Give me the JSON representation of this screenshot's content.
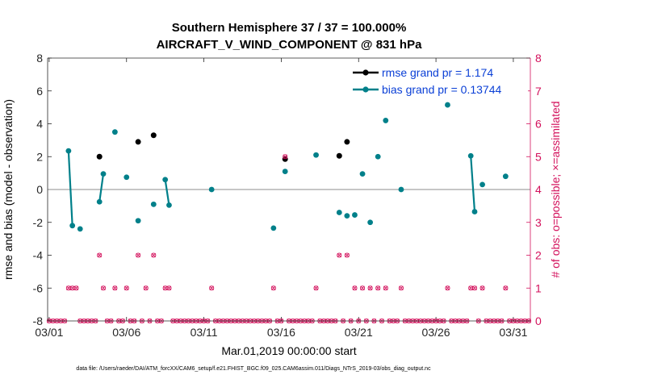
{
  "chart_data": {
    "type": "line",
    "title_line1": "Southern Hemisphere 37 / 37 = 100.000%",
    "title_line2": "AIRCRAFT_V_WIND_COMPONENT @ 831 hPa",
    "xlabel": "Mar.01,2019 00:00:00 start",
    "ylabel": "rmse and bias (model - observation)",
    "ylabel_right": "# of obs: o=possible; ×=assimilated",
    "footer": "data file: /Users/raeder/DAI/ATM_forcXX/CAM6_setup/f.e21.FHIST_BGC.f09_025.CAM6assim.011/Diags_NTrS_2019-03/obs_diag_output.nc",
    "xlim": [
      0.9,
      32.1
    ],
    "ylim": [
      -8,
      8
    ],
    "ylim_right": [
      0,
      8
    ],
    "x_ticks": [
      1,
      6,
      11,
      16,
      21,
      26,
      31
    ],
    "x_tick_labels": [
      "03/01",
      "03/06",
      "03/11",
      "03/16",
      "03/21",
      "03/26",
      "03/31"
    ],
    "y_ticks": [
      -8,
      -6,
      -4,
      -2,
      0,
      2,
      4,
      6,
      8
    ],
    "y_tick_labels": [
      "-8",
      "-6",
      "-4",
      "-2",
      "0",
      "2",
      "4",
      "6",
      "8"
    ],
    "y_ticks_right": [
      0,
      1,
      2,
      3,
      4,
      5,
      6,
      7,
      8
    ],
    "y_tick_labels_right": [
      "0",
      "1",
      "2",
      "3",
      "4",
      "5",
      "6",
      "7",
      "8"
    ],
    "zero_line": 0,
    "series": [
      {
        "name": "rmse grand pr = 1.174",
        "color": "#000000",
        "points": [
          {
            "x": 4.25,
            "y": 2.0
          },
          {
            "x": 6.75,
            "y": 2.9
          },
          {
            "x": 7.75,
            "y": 3.3
          },
          {
            "x": 16.25,
            "y": 1.85
          },
          {
            "x": 19.75,
            "y": 2.05
          },
          {
            "x": 20.25,
            "y": 2.9
          }
        ]
      },
      {
        "name": "bias grand pr = 0.13744",
        "color": "#00808a",
        "segments": [
          [
            {
              "x": 2.25,
              "y": 2.35
            },
            {
              "x": 2.5,
              "y": -2.2
            }
          ],
          [
            {
              "x": 3.0,
              "y": -2.4
            }
          ],
          [
            {
              "x": 4.25,
              "y": -0.75
            },
            {
              "x": 4.5,
              "y": 0.95
            }
          ],
          [
            {
              "x": 5.25,
              "y": 3.5
            }
          ],
          [
            {
              "x": 6.0,
              "y": 0.75
            }
          ],
          [
            {
              "x": 6.75,
              "y": -1.9
            }
          ],
          [
            {
              "x": 7.75,
              "y": -0.9
            }
          ],
          [
            {
              "x": 8.5,
              "y": 0.6
            },
            {
              "x": 8.75,
              "y": -0.95
            }
          ],
          [
            {
              "x": 11.5,
              "y": 0.0
            }
          ],
          [
            {
              "x": 15.5,
              "y": -2.35
            }
          ],
          [
            {
              "x": 16.25,
              "y": 1.1
            }
          ],
          [
            {
              "x": 18.25,
              "y": 2.1
            }
          ],
          [
            {
              "x": 19.75,
              "y": -1.4
            }
          ],
          [
            {
              "x": 20.25,
              "y": -1.6
            }
          ],
          [
            {
              "x": 20.75,
              "y": -1.55
            }
          ],
          [
            {
              "x": 21.25,
              "y": 0.95
            }
          ],
          [
            {
              "x": 21.75,
              "y": -2.0
            }
          ],
          [
            {
              "x": 22.25,
              "y": 2.0
            }
          ],
          [
            {
              "x": 22.75,
              "y": 4.2
            }
          ],
          [
            {
              "x": 23.75,
              "y": 0.0
            }
          ],
          [
            {
              "x": 26.75,
              "y": 5.15
            }
          ],
          [
            {
              "x": 28.25,
              "y": 2.05
            },
            {
              "x": 28.5,
              "y": -1.35
            }
          ],
          [
            {
              "x": 29.0,
              "y": 0.3
            }
          ],
          [
            {
              "x": 30.5,
              "y": 0.8
            }
          ]
        ]
      },
      {
        "name": "obs possible",
        "color": "#d3115c",
        "axis": "right",
        "points": [
          {
            "x": 2.25,
            "y": 1
          },
          {
            "x": 2.5,
            "y": 1
          },
          {
            "x": 2.75,
            "y": 1
          },
          {
            "x": 4.25,
            "y": 2
          },
          {
            "x": 4.5,
            "y": 1
          },
          {
            "x": 5.25,
            "y": 1
          },
          {
            "x": 6.0,
            "y": 1
          },
          {
            "x": 6.75,
            "y": 2
          },
          {
            "x": 7.25,
            "y": 1
          },
          {
            "x": 7.75,
            "y": 2
          },
          {
            "x": 8.5,
            "y": 1
          },
          {
            "x": 8.75,
            "y": 1
          },
          {
            "x": 11.5,
            "y": 1
          },
          {
            "x": 15.5,
            "y": 1
          },
          {
            "x": 16.25,
            "y": 5
          },
          {
            "x": 18.25,
            "y": 1
          },
          {
            "x": 19.75,
            "y": 2
          },
          {
            "x": 20.25,
            "y": 2
          },
          {
            "x": 20.75,
            "y": 1
          },
          {
            "x": 21.25,
            "y": 1
          },
          {
            "x": 21.75,
            "y": 1
          },
          {
            "x": 22.25,
            "y": 1
          },
          {
            "x": 22.75,
            "y": 1
          },
          {
            "x": 23.75,
            "y": 1
          },
          {
            "x": 26.75,
            "y": 1
          },
          {
            "x": 28.25,
            "y": 1
          },
          {
            "x": 28.5,
            "y": 1
          },
          {
            "x": 29.0,
            "y": 1
          },
          {
            "x": 30.5,
            "y": 1
          }
        ]
      }
    ],
    "legend": {
      "placement": "top-right",
      "entries": [
        {
          "label": "rmse grand pr = 1.174",
          "color": "#000000"
        },
        {
          "label": "bias grand pr = 0.13744",
          "color": "#00808a"
        }
      ]
    }
  }
}
